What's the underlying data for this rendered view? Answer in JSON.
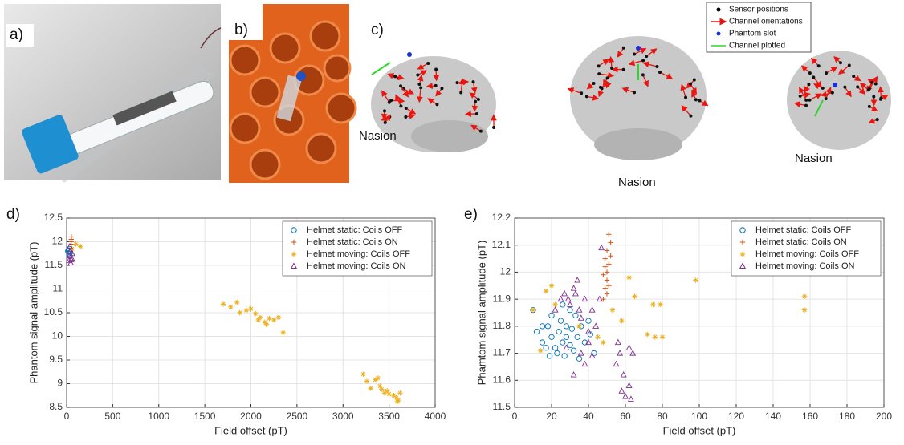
{
  "panel_labels": [
    "a)",
    "b)",
    "c)",
    "d)",
    "e)"
  ],
  "head_legend": [
    "Sensor positions",
    "Channel orientations",
    "Phantom slot",
    "Channel plotted"
  ],
  "nasion_labels": [
    "Nasion",
    "Nasion",
    "Nasion"
  ],
  "chart_data": [
    {
      "type": "scatter",
      "xlabel": "Field offset (pT)",
      "ylabel": "Phantom signal amplitude (pT)",
      "xlim": [
        0,
        4000
      ],
      "xticks": [
        0,
        500,
        1000,
        1500,
        2000,
        2500,
        3000,
        3500,
        4000
      ],
      "ylim": [
        8.5,
        12.5
      ],
      "yticks": [
        8.5,
        9,
        9.5,
        10,
        10.5,
        11,
        11.5,
        12,
        12.5
      ],
      "grid": true,
      "legend": "upper right",
      "series": [
        {
          "name": "Helmet static: Coils OFF",
          "color": "#0072BD",
          "marker": "circle",
          "x": [
            15,
            25,
            30,
            35,
            40,
            20
          ],
          "values": [
            11.8,
            11.75,
            11.85,
            11.7,
            11.78,
            11.82
          ]
        },
        {
          "name": "Helmet static: Coils ON",
          "color": "#D95319",
          "marker": "plus",
          "x": [
            50,
            50,
            52,
            48
          ],
          "values": [
            11.95,
            12.05,
            12.1,
            12.0
          ]
        },
        {
          "name": "Helmet moving: Coils OFF",
          "color": "#EDB120",
          "marker": "star",
          "x": [
            100,
            150,
            60,
            1700,
            1780,
            1850,
            1880,
            1950,
            2000,
            2050,
            2080,
            2100,
            2150,
            2170,
            2200,
            2250,
            2300,
            2350,
            3220,
            3260,
            3300,
            3350,
            3380,
            3400,
            3420,
            3450,
            3480,
            3500,
            3550,
            3580,
            3600,
            3620,
            3590
          ],
          "values": [
            11.95,
            11.9,
            11.85,
            10.68,
            10.62,
            10.72,
            10.5,
            10.55,
            10.58,
            10.48,
            10.35,
            10.4,
            10.3,
            10.25,
            10.38,
            10.35,
            10.4,
            10.08,
            9.2,
            9.05,
            8.9,
            9.08,
            9.12,
            8.95,
            8.88,
            8.8,
            8.85,
            8.78,
            8.75,
            8.7,
            8.65,
            8.8,
            8.62
          ]
        },
        {
          "name": "Helmet moving: Coils ON",
          "color": "#7E2F8E",
          "marker": "triangle",
          "x": [
            25,
            30,
            40,
            45,
            55,
            60,
            35,
            50
          ],
          "values": [
            11.6,
            11.7,
            11.8,
            11.55,
            11.65,
            11.75,
            11.9,
            11.62
          ]
        }
      ]
    },
    {
      "type": "scatter",
      "xlabel": "Field offset (pT)",
      "ylabel": "Phamtom signal amplitude (pT)",
      "xlim": [
        0,
        200
      ],
      "xticks": [
        0,
        20,
        40,
        60,
        80,
        100,
        120,
        140,
        160,
        180,
        200
      ],
      "ylim": [
        11.5,
        12.2
      ],
      "yticks": [
        11.5,
        11.6,
        11.7,
        11.8,
        11.9,
        12,
        12.1,
        12.2
      ],
      "grid": true,
      "legend": "upper right",
      "series": [
        {
          "name": "Helmet static: Coils OFF",
          "color": "#0072BD",
          "marker": "circle",
          "x": [
            10,
            12,
            15,
            17,
            18,
            20,
            20,
            22,
            23,
            24,
            25,
            26,
            27,
            28,
            28,
            30,
            30,
            31,
            32,
            33,
            34,
            35,
            36,
            38,
            40,
            41,
            43,
            15,
            19,
            26
          ],
          "values": [
            11.86,
            11.78,
            11.74,
            11.72,
            11.8,
            11.76,
            11.84,
            11.72,
            11.7,
            11.78,
            11.82,
            11.74,
            11.69,
            11.8,
            11.76,
            11.73,
            11.86,
            11.79,
            11.71,
            11.84,
            11.76,
            11.68,
            11.8,
            11.74,
            11.82,
            11.77,
            11.7,
            11.8,
            11.69,
            11.88
          ]
        },
        {
          "name": "Helmet static: Coils ON",
          "color": "#D95319",
          "marker": "plus",
          "x": [
            48,
            49,
            50,
            50,
            51,
            49,
            50,
            52,
            51,
            50,
            48,
            52,
            49,
            51
          ],
          "values": [
            11.9,
            11.94,
            11.97,
            12.0,
            12.03,
            12.05,
            12.08,
            12.11,
            12.14,
            11.92,
            11.99,
            12.06,
            12.02,
            11.95
          ]
        },
        {
          "name": "Helmet moving: Coils OFF",
          "color": "#EDB120",
          "marker": "star",
          "x": [
            10,
            14,
            17,
            20,
            22,
            35,
            45,
            48,
            53,
            58,
            62,
            65,
            72,
            75,
            76,
            79,
            80,
            98,
            157,
            157
          ],
          "values": [
            11.86,
            11.71,
            11.93,
            11.95,
            11.88,
            11.8,
            11.76,
            11.74,
            11.86,
            11.82,
            11.98,
            11.91,
            11.77,
            11.88,
            11.76,
            11.88,
            11.76,
            11.97,
            11.91,
            11.86
          ]
        },
        {
          "name": "Helmet moving: Coils ON",
          "color": "#7E2F8E",
          "marker": "triangle",
          "x": [
            22,
            25,
            27,
            29,
            30,
            32,
            33,
            34,
            35,
            36,
            38,
            40,
            42,
            44,
            46,
            47,
            42,
            40,
            36,
            32,
            55,
            57,
            58,
            59,
            60,
            62,
            63,
            62,
            64,
            56,
            38,
            28
          ],
          "values": [
            11.86,
            11.9,
            11.92,
            11.9,
            11.88,
            11.94,
            11.92,
            11.97,
            11.86,
            11.83,
            11.9,
            11.78,
            11.86,
            11.8,
            11.9,
            12.09,
            11.69,
            11.74,
            11.7,
            11.62,
            11.66,
            11.7,
            11.56,
            11.62,
            11.54,
            11.58,
            11.53,
            11.72,
            11.7,
            11.74,
            11.66,
            11.72
          ]
        }
      ]
    }
  ]
}
